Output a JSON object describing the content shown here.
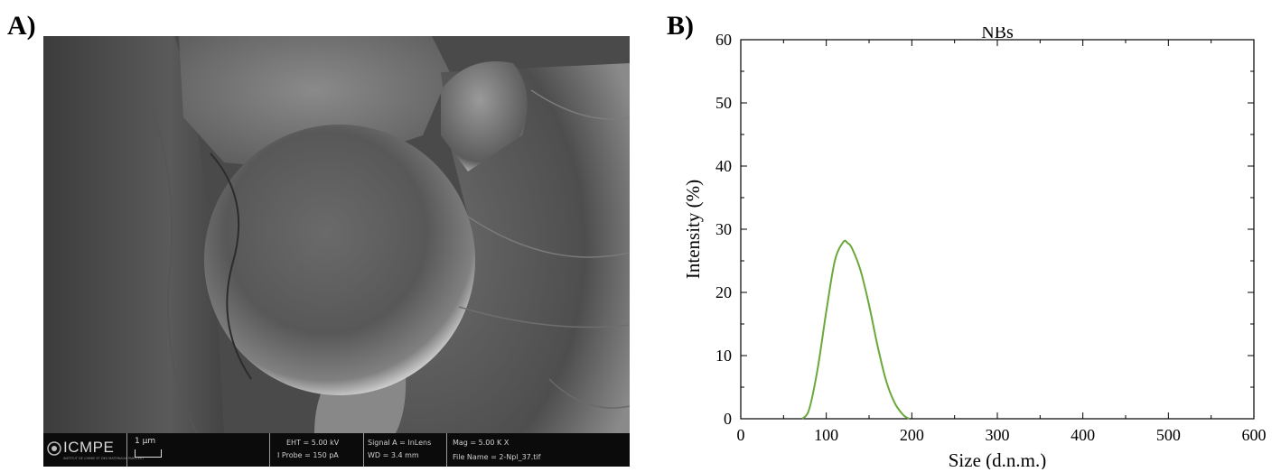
{
  "panels": {
    "a_label": "A)",
    "b_label": "B)"
  },
  "sem_info": {
    "logo": "ICMPE",
    "logo_sub": "INSTITUT DE CHIMIE ET DES MATERIAUX PARIS-EST",
    "scale_bar": "1 μm",
    "eht": "EHT = 5.00 kV",
    "iprobe": "I Probe = 150 pA",
    "signal": "Signal A = InLens",
    "wd": "WD = 3.4 mm",
    "mag": "Mag = 5.00 K X",
    "file": "File Name = 2-Npl_37.tif"
  },
  "colors": {
    "curve": "#6aa83a",
    "sem_bar": "#0b0b0b"
  },
  "chart_data": {
    "type": "line",
    "title": "NBs",
    "xlabel": "Size (d.n.m.)",
    "ylabel": "Intensity (%)",
    "xlim": [
      0,
      600
    ],
    "ylim": [
      0,
      60
    ],
    "xticks": [
      "0",
      "100",
      "200",
      "300",
      "400",
      "500",
      "600"
    ],
    "yticks": [
      "0",
      "10",
      "20",
      "30",
      "40",
      "50",
      "60"
    ],
    "grid": false,
    "series": [
      {
        "x": [
          72,
          80,
          90,
          100,
          110,
          120,
          125,
          130,
          140,
          150,
          160,
          170,
          180,
          190,
          197
        ],
        "y": [
          0,
          1.5,
          8,
          17,
          25,
          28,
          27.8,
          27,
          23.5,
          18,
          11.5,
          6,
          2.5,
          0.6,
          0
        ]
      }
    ]
  }
}
